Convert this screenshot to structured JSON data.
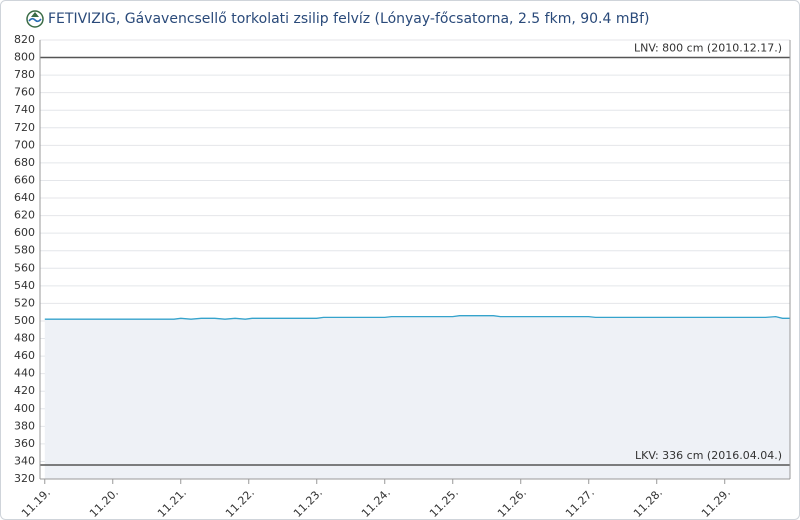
{
  "chart_data": {
    "type": "line",
    "title": "FETIVIZIG, Gávavencsellő torkolati zsilip felvíz (Lónyay-főcsatorna, 2.5 fkm, 90.4 mBf)",
    "x": [
      0,
      1,
      1.9,
      2.0,
      2.15,
      2.3,
      2.5,
      2.65,
      2.8,
      2.95,
      3.05,
      4,
      4.1,
      5,
      5.1,
      6,
      6.1,
      6.6,
      6.7,
      8,
      8.1,
      10.6,
      10.75,
      10.85,
      10.96
    ],
    "series": [
      {
        "color": "#35a3cc",
        "area_color": "#eef1f6",
        "values": [
          502,
          502,
          502,
          503,
          502,
          503,
          503,
          502,
          503,
          502,
          503,
          503,
          504,
          504,
          505,
          505,
          506,
          506,
          505,
          505,
          504,
          504,
          505,
          503,
          503
        ]
      }
    ],
    "xlim": [
      -0.07,
      10.96
    ],
    "xticks": [
      {
        "value": 0,
        "label": "11.19."
      },
      {
        "value": 1,
        "label": "11.20."
      },
      {
        "value": 2,
        "label": "11.21."
      },
      {
        "value": 3,
        "label": "11.22."
      },
      {
        "value": 4,
        "label": "11.23."
      },
      {
        "value": 5,
        "label": "11.24."
      },
      {
        "value": 6,
        "label": "11.25."
      },
      {
        "value": 7,
        "label": "11.26."
      },
      {
        "value": 8,
        "label": "11.27."
      },
      {
        "value": 9,
        "label": "11.28."
      },
      {
        "value": 10,
        "label": "11.29."
      }
    ],
    "ylim": [
      320,
      820
    ],
    "yticks": [
      320,
      340,
      360,
      380,
      400,
      420,
      440,
      460,
      480,
      500,
      520,
      540,
      560,
      580,
      600,
      620,
      640,
      660,
      680,
      700,
      720,
      740,
      760,
      780,
      800,
      820
    ],
    "grid": true,
    "reference_lines": [
      {
        "value": 800,
        "label": "LNV: 800 cm (2010.12.17.)"
      },
      {
        "value": 336,
        "label": "LKV: 336 cm (2016.04.04.)"
      }
    ]
  }
}
